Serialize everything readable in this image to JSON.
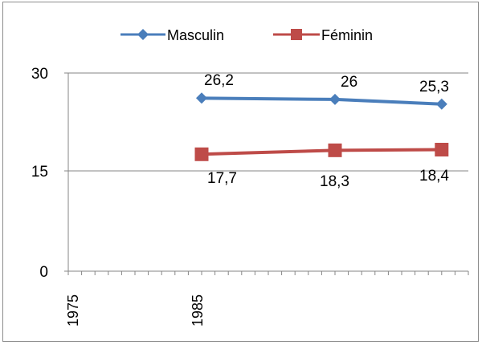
{
  "chart_data": {
    "type": "line",
    "x_tick_labels": [
      "1975",
      "1985"
    ],
    "x": [
      1985,
      1995,
      2003
    ],
    "series": [
      {
        "name": "Masculin",
        "values": [
          26.2,
          26,
          25.3
        ],
        "labels": [
          "26,2",
          "26",
          "25,3"
        ],
        "color": "#4a7ebb",
        "marker": "diamond"
      },
      {
        "name": "Féminin",
        "values": [
          17.7,
          18.3,
          18.4
        ],
        "labels": [
          "17,7",
          "18,3",
          "18,4"
        ],
        "color": "#be4b48",
        "marker": "square"
      }
    ],
    "y_ticks": [
      0,
      15,
      30
    ],
    "y_tick_labels": [
      "0",
      "15",
      "30"
    ],
    "ylim": [
      0,
      30
    ],
    "xlabel": "",
    "ylabel": "",
    "title": "",
    "grid": true,
    "legend_position": "top"
  }
}
